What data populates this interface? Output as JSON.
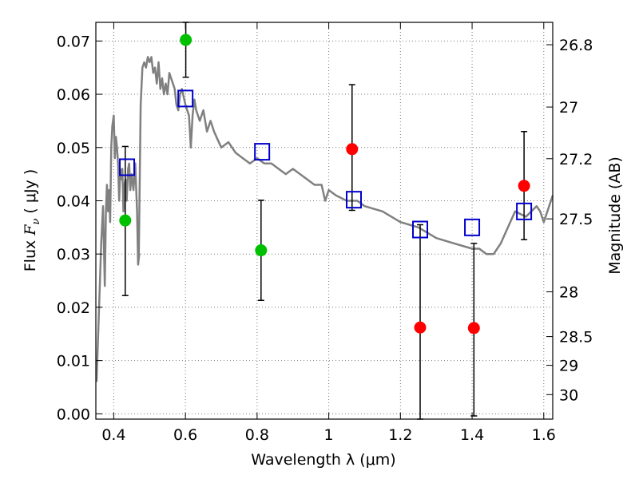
{
  "chart_data": {
    "type": "scatter",
    "xlabel": "Wavelength  λ (μm)",
    "ylabel": "Flux  F_ν  ( μJy )",
    "ylabel_parts": {
      "prefix": "Flux  ",
      "symbol": "F",
      "subscript": "ν",
      "suffix": "  ( μJy )"
    },
    "y2label": "Magnitude (AB)",
    "xlim": [
      0.35,
      1.625
    ],
    "ylim": [
      -0.001,
      0.0735
    ],
    "grid": true,
    "x_ticks": [
      {
        "value": 0.4,
        "label": "0.4"
      },
      {
        "value": 0.6,
        "label": "0.6"
      },
      {
        "value": 0.8,
        "label": "0.8"
      },
      {
        "value": 1.0,
        "label": "1"
      },
      {
        "value": 1.2,
        "label": "1.2"
      },
      {
        "value": 1.4,
        "label": "1.4"
      },
      {
        "value": 1.6,
        "label": "1.6"
      }
    ],
    "y_ticks": [
      {
        "value": 0.0,
        "label": "0.00"
      },
      {
        "value": 0.01,
        "label": "0.01"
      },
      {
        "value": 0.02,
        "label": "0.02"
      },
      {
        "value": 0.03,
        "label": "0.03"
      },
      {
        "value": 0.04,
        "label": "0.04"
      },
      {
        "value": 0.05,
        "label": "0.05"
      },
      {
        "value": 0.06,
        "label": "0.06"
      },
      {
        "value": 0.07,
        "label": "0.07"
      }
    ],
    "y2_ticks": [
      {
        "label": "26.8",
        "flux": 0.0693
      },
      {
        "label": "27",
        "flux": 0.0576
      },
      {
        "label": "27.2",
        "flux": 0.0479
      },
      {
        "label": "27.5",
        "flux": 0.0366
      },
      {
        "label": "28",
        "flux": 0.0229
      },
      {
        "label": "28.5",
        "flux": 0.0145
      },
      {
        "label": "29",
        "flux": 0.0091
      },
      {
        "label": "30",
        "flux": 0.0036
      }
    ],
    "colors": {
      "model": "#808080",
      "green": "#00c000",
      "red": "#ff0000",
      "blue_square": "#0000cc",
      "errorbar": "#000000",
      "grid": "#777777"
    },
    "model_spectrum": {
      "x": [
        0.352,
        0.36,
        0.365,
        0.37,
        0.375,
        0.378,
        0.381,
        0.384,
        0.387,
        0.39,
        0.393,
        0.396,
        0.4,
        0.403,
        0.406,
        0.409,
        0.412,
        0.415,
        0.418,
        0.421,
        0.424,
        0.427,
        0.43,
        0.433,
        0.436,
        0.44,
        0.443,
        0.446,
        0.45,
        0.455,
        0.46,
        0.465,
        0.468,
        0.471,
        0.47,
        0.475,
        0.48,
        0.485,
        0.49,
        0.495,
        0.5,
        0.505,
        0.51,
        0.515,
        0.52,
        0.525,
        0.53,
        0.535,
        0.54,
        0.545,
        0.55,
        0.555,
        0.56,
        0.565,
        0.57,
        0.575,
        0.58,
        0.585,
        0.59,
        0.6,
        0.605,
        0.61,
        0.615,
        0.62,
        0.625,
        0.63,
        0.64,
        0.65,
        0.66,
        0.67,
        0.68,
        0.7,
        0.72,
        0.74,
        0.76,
        0.78,
        0.8,
        0.82,
        0.84,
        0.86,
        0.88,
        0.9,
        0.92,
        0.94,
        0.96,
        0.98,
        0.99,
        1.0,
        1.02,
        1.05,
        1.08,
        1.1,
        1.15,
        1.2,
        1.25,
        1.3,
        1.35,
        1.4,
        1.42,
        1.44,
        1.46,
        1.48,
        1.5,
        1.52,
        1.55,
        1.58,
        1.59,
        1.6,
        1.625
      ],
      "y": [
        0.006,
        0.022,
        0.032,
        0.039,
        0.024,
        0.038,
        0.043,
        0.038,
        0.042,
        0.036,
        0.05,
        0.054,
        0.056,
        0.048,
        0.052,
        0.05,
        0.047,
        0.04,
        0.046,
        0.044,
        0.046,
        0.038,
        0.043,
        0.044,
        0.04,
        0.046,
        0.047,
        0.042,
        0.045,
        0.042,
        0.047,
        0.038,
        0.028,
        0.03,
        0.03,
        0.058,
        0.065,
        0.066,
        0.065,
        0.067,
        0.066,
        0.067,
        0.064,
        0.065,
        0.062,
        0.066,
        0.061,
        0.063,
        0.06,
        0.062,
        0.06,
        0.064,
        0.063,
        0.062,
        0.061,
        0.058,
        0.057,
        0.06,
        0.061,
        0.058,
        0.057,
        0.056,
        0.05,
        0.056,
        0.059,
        0.057,
        0.055,
        0.057,
        0.053,
        0.055,
        0.053,
        0.05,
        0.051,
        0.049,
        0.048,
        0.047,
        0.048,
        0.047,
        0.047,
        0.046,
        0.045,
        0.046,
        0.045,
        0.044,
        0.043,
        0.043,
        0.04,
        0.042,
        0.041,
        0.04,
        0.04,
        0.039,
        0.038,
        0.036,
        0.035,
        0.033,
        0.032,
        0.031,
        0.031,
        0.03,
        0.03,
        0.032,
        0.035,
        0.038,
        0.037,
        0.039,
        0.038,
        0.036,
        0.041
      ]
    },
    "series": [
      {
        "marker": "circle",
        "color_key": "green",
        "points": [
          {
            "x": 0.432,
            "y": 0.0363,
            "yerr_low": 0.0222,
            "yerr_high": 0.0502
          },
          {
            "x": 0.601,
            "y": 0.0702,
            "yerr_low": 0.0632,
            "yerr_high": 0.0735
          },
          {
            "x": 0.811,
            "y": 0.0307,
            "yerr_low": 0.0213,
            "yerr_high": 0.0401
          }
        ]
      },
      {
        "marker": "circle",
        "color_key": "red",
        "points": [
          {
            "x": 1.065,
            "y": 0.0497,
            "yerr_low": 0.0382,
            "yerr_high": 0.0618
          },
          {
            "x": 1.255,
            "y": 0.0162,
            "yerr_low": -0.001,
            "yerr_high": 0.0355
          },
          {
            "x": 1.405,
            "y": 0.0161,
            "yerr_low": -0.0004,
            "yerr_high": 0.032
          },
          {
            "x": 1.545,
            "y": 0.0428,
            "yerr_low": 0.0327,
            "yerr_high": 0.053
          }
        ]
      },
      {
        "marker": "open-square",
        "color_key": "blue_square",
        "points": [
          {
            "x": 0.437,
            "y": 0.0463
          },
          {
            "x": 0.6,
            "y": 0.0592
          },
          {
            "x": 0.814,
            "y": 0.0492
          },
          {
            "x": 1.07,
            "y": 0.0402
          },
          {
            "x": 1.255,
            "y": 0.0346
          },
          {
            "x": 1.4,
            "y": 0.035
          },
          {
            "x": 1.545,
            "y": 0.038
          }
        ]
      }
    ]
  }
}
